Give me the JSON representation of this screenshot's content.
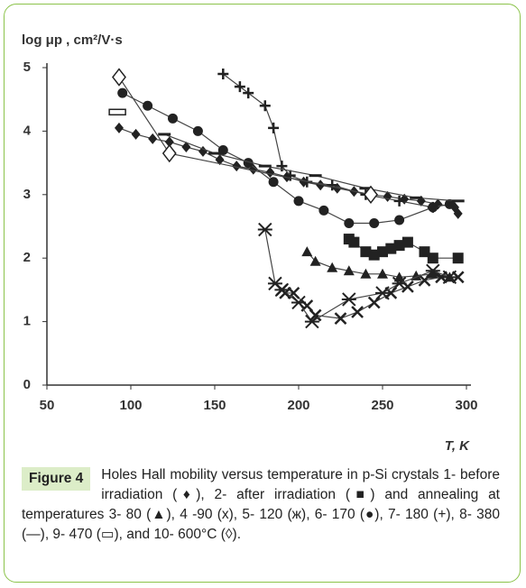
{
  "chart_data": {
    "type": "line",
    "y_label": "log μp , cm²/V·s",
    "x_label": "T, K",
    "xlim": [
      50,
      300
    ],
    "xticks": [
      50,
      100,
      150,
      200,
      250,
      300
    ],
    "ylim": [
      0,
      5
    ],
    "yticks": [
      0,
      1,
      2,
      3,
      4,
      5
    ],
    "series": [
      {
        "marker": "diamond",
        "color": "#222",
        "x": [
          93,
          103,
          113,
          123,
          133,
          143,
          153,
          163,
          173,
          183,
          193,
          203,
          213,
          223,
          233,
          243,
          253,
          263,
          273,
          283,
          293,
          295
        ],
        "values": [
          4.05,
          3.95,
          3.88,
          3.83,
          3.75,
          3.68,
          3.55,
          3.45,
          3.4,
          3.35,
          3.28,
          3.2,
          3.15,
          3.1,
          3.05,
          3.0,
          2.97,
          2.93,
          2.9,
          2.85,
          2.8,
          2.7
        ]
      },
      {
        "marker": "square",
        "color": "#222",
        "x": [
          230,
          233,
          240,
          245,
          250,
          255,
          260,
          265,
          275,
          280,
          295
        ],
        "values": [
          2.3,
          2.25,
          2.1,
          2.05,
          2.1,
          2.15,
          2.2,
          2.25,
          2.1,
          2.0,
          2.0
        ]
      },
      {
        "marker": "triangle",
        "color": "#222",
        "x": [
          205,
          210,
          220,
          230,
          240,
          250,
          260,
          270,
          280,
          290
        ],
        "values": [
          2.1,
          1.95,
          1.85,
          1.8,
          1.75,
          1.75,
          1.7,
          1.72,
          1.75,
          1.7
        ]
      },
      {
        "marker": "cross",
        "color": "#222",
        "x": [
          190,
          192,
          197,
          205,
          210,
          225,
          235,
          245,
          255,
          265,
          275,
          285,
          295
        ],
        "values": [
          1.5,
          1.45,
          1.45,
          1.25,
          1.1,
          1.05,
          1.15,
          1.3,
          1.45,
          1.55,
          1.65,
          1.7,
          1.7
        ]
      },
      {
        "marker": "asterisk",
        "color": "#222",
        "x": [
          180,
          186,
          190,
          200,
          208,
          230,
          250,
          260,
          280,
          290
        ],
        "values": [
          2.45,
          1.6,
          1.5,
          1.3,
          1.0,
          1.35,
          1.45,
          1.6,
          1.8,
          1.7
        ]
      },
      {
        "marker": "circle",
        "color": "#222",
        "x": [
          95,
          110,
          125,
          140,
          155,
          170,
          185,
          200,
          215,
          230,
          245,
          260,
          280,
          290
        ],
        "values": [
          4.6,
          4.4,
          4.2,
          4.0,
          3.7,
          3.5,
          3.2,
          2.9,
          2.75,
          2.55,
          2.55,
          2.6,
          2.8,
          2.85
        ]
      },
      {
        "marker": "plus",
        "color": "#222",
        "x": [
          155,
          165,
          170,
          180,
          185,
          190,
          195,
          205,
          220,
          240,
          260,
          280
        ],
        "values": [
          4.9,
          4.7,
          4.6,
          4.4,
          4.05,
          3.45,
          3.3,
          3.2,
          3.15,
          3.0,
          2.9,
          2.8
        ]
      },
      {
        "marker": "dash",
        "color": "#222",
        "x": [
          120,
          150,
          180,
          210,
          240,
          270,
          295
        ],
        "values": [
          3.95,
          3.65,
          3.45,
          3.3,
          3.1,
          2.95,
          2.9
        ]
      },
      {
        "marker": "bar",
        "color": "#222",
        "x": [
          92
        ],
        "values": [
          4.3
        ]
      },
      {
        "marker": "open-diamond",
        "color": "#222",
        "x": [
          93,
          123,
          243
        ],
        "values": [
          4.85,
          3.65,
          3.0
        ]
      }
    ]
  },
  "figure": {
    "label": "Figure 4",
    "caption": "Holes Hall mobility versus temperature in p-Si crystals 1- before irradiation (♦), 2- after irradiation (■) and annealing at temperatures 3- 80 (▲), 4 -90 (x), 5- 120 (ж), 6- 170 (●), 7- 180 (+), 8- 380 (—), 9- 470 (▭), and 10- 600°C (◊)."
  }
}
